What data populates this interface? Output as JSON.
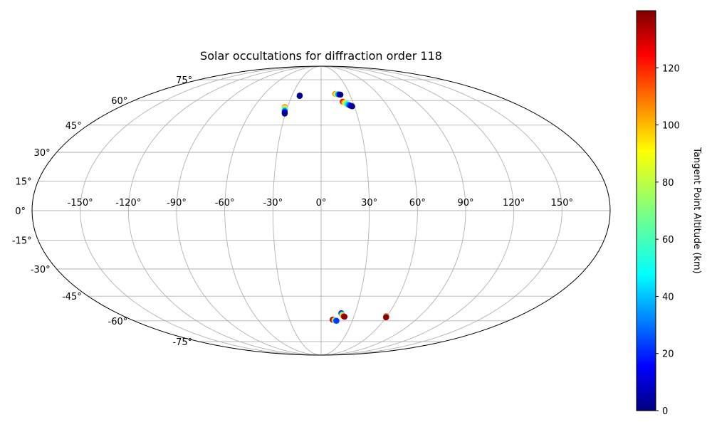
{
  "chart_data": {
    "type": "scatter",
    "projection": "mollweide",
    "title": "Solar occultations for diffraction order 118",
    "xlabel": "",
    "ylabel": "",
    "grid": true,
    "lon_ticks": [
      -150,
      -120,
      -90,
      -60,
      -30,
      0,
      30,
      60,
      90,
      120,
      150
    ],
    "lon_tick_labels": [
      "-150°",
      "-120°",
      "-90°",
      "-60°",
      "-30°",
      "0°",
      "30°",
      "60°",
      "90°",
      "120°",
      "150°"
    ],
    "lat_ticks": [
      75,
      60,
      45,
      30,
      15,
      0,
      -15,
      -30,
      -45,
      -60,
      -75
    ],
    "lat_tick_labels": [
      "75°",
      "60°",
      "45°",
      "30°",
      "15°",
      "0°",
      "-15°",
      "-30°",
      "-45°",
      "-60°",
      "-75°"
    ],
    "colorbar": {
      "label": "Tangent Point Altitude (km)",
      "colormap": "jet",
      "range": [
        0,
        140
      ],
      "ticks": [
        0,
        20,
        40,
        60,
        80,
        100,
        120
      ],
      "tick_labels": [
        "0",
        "20",
        "40",
        "60",
        "80",
        "100",
        "120"
      ]
    },
    "series": [
      {
        "points": [
          {
            "lon": -22,
            "lat": 63.3,
            "alt": 5
          },
          {
            "lon": -22,
            "lat": 63.0,
            "alt": 2
          },
          {
            "lon": -32.5,
            "lat": 55.8,
            "alt": 105
          },
          {
            "lon": -32.2,
            "lat": 55.2,
            "alt": 90
          },
          {
            "lon": -31.9,
            "lat": 54.6,
            "alt": 72
          },
          {
            "lon": -31.6,
            "lat": 54.0,
            "alt": 55
          },
          {
            "lon": -31.3,
            "lat": 53.4,
            "alt": 38
          },
          {
            "lon": -31.0,
            "lat": 52.8,
            "alt": 20
          },
          {
            "lon": -30.8,
            "lat": 52.3,
            "alt": 8
          },
          {
            "lon": -30.6,
            "lat": 51.8,
            "alt": 2
          },
          {
            "lon": 15.0,
            "lat": 64.4,
            "alt": 108
          },
          {
            "lon": 16.0,
            "lat": 64.3,
            "alt": 88
          },
          {
            "lon": 17.0,
            "lat": 64.2,
            "alt": 65
          },
          {
            "lon": 18.0,
            "lat": 64.1,
            "alt": 40
          },
          {
            "lon": 19.2,
            "lat": 64.0,
            "alt": 15
          },
          {
            "lon": 20.2,
            "lat": 63.9,
            "alt": 3
          },
          {
            "lon": 20.5,
            "lat": 59.2,
            "alt": 125
          },
          {
            "lon": 21.3,
            "lat": 58.8,
            "alt": 108
          },
          {
            "lon": 22.2,
            "lat": 58.4,
            "alt": 90
          },
          {
            "lon": 23.2,
            "lat": 58.0,
            "alt": 72
          },
          {
            "lon": 24.2,
            "lat": 57.6,
            "alt": 55
          },
          {
            "lon": 25.2,
            "lat": 57.2,
            "alt": 38
          },
          {
            "lon": 26.2,
            "lat": 56.8,
            "alt": 22
          },
          {
            "lon": 27.2,
            "lat": 56.5,
            "alt": 10
          },
          {
            "lon": 28.0,
            "lat": 56.3,
            "alt": 2
          },
          {
            "lon": 17.9,
            "lat": -55.2,
            "alt": 5
          },
          {
            "lon": 18.3,
            "lat": -55.6,
            "alt": 25
          },
          {
            "lon": 18.8,
            "lat": -56.0,
            "alt": 50
          },
          {
            "lon": 19.3,
            "lat": -56.4,
            "alt": 75
          },
          {
            "lon": 19.8,
            "lat": -56.8,
            "alt": 95
          },
          {
            "lon": 20.8,
            "lat": -57.2,
            "alt": 130
          },
          {
            "lon": 21.5,
            "lat": -57.4,
            "alt": 138
          },
          {
            "lon": 11.0,
            "lat": -59.3,
            "alt": 138
          },
          {
            "lon": 12.0,
            "lat": -59.5,
            "alt": 120
          },
          {
            "lon": 13.0,
            "lat": -59.7,
            "alt": 80
          },
          {
            "lon": 14.0,
            "lat": -59.9,
            "alt": 45
          },
          {
            "lon": 14.8,
            "lat": -60.0,
            "alt": 25
          },
          {
            "lon": 59.0,
            "lat": -56.8,
            "alt": 60
          },
          {
            "lon": 59.6,
            "lat": -57.2,
            "alt": 110
          },
          {
            "lon": 60.0,
            "lat": -57.8,
            "alt": 138
          }
        ]
      }
    ]
  }
}
